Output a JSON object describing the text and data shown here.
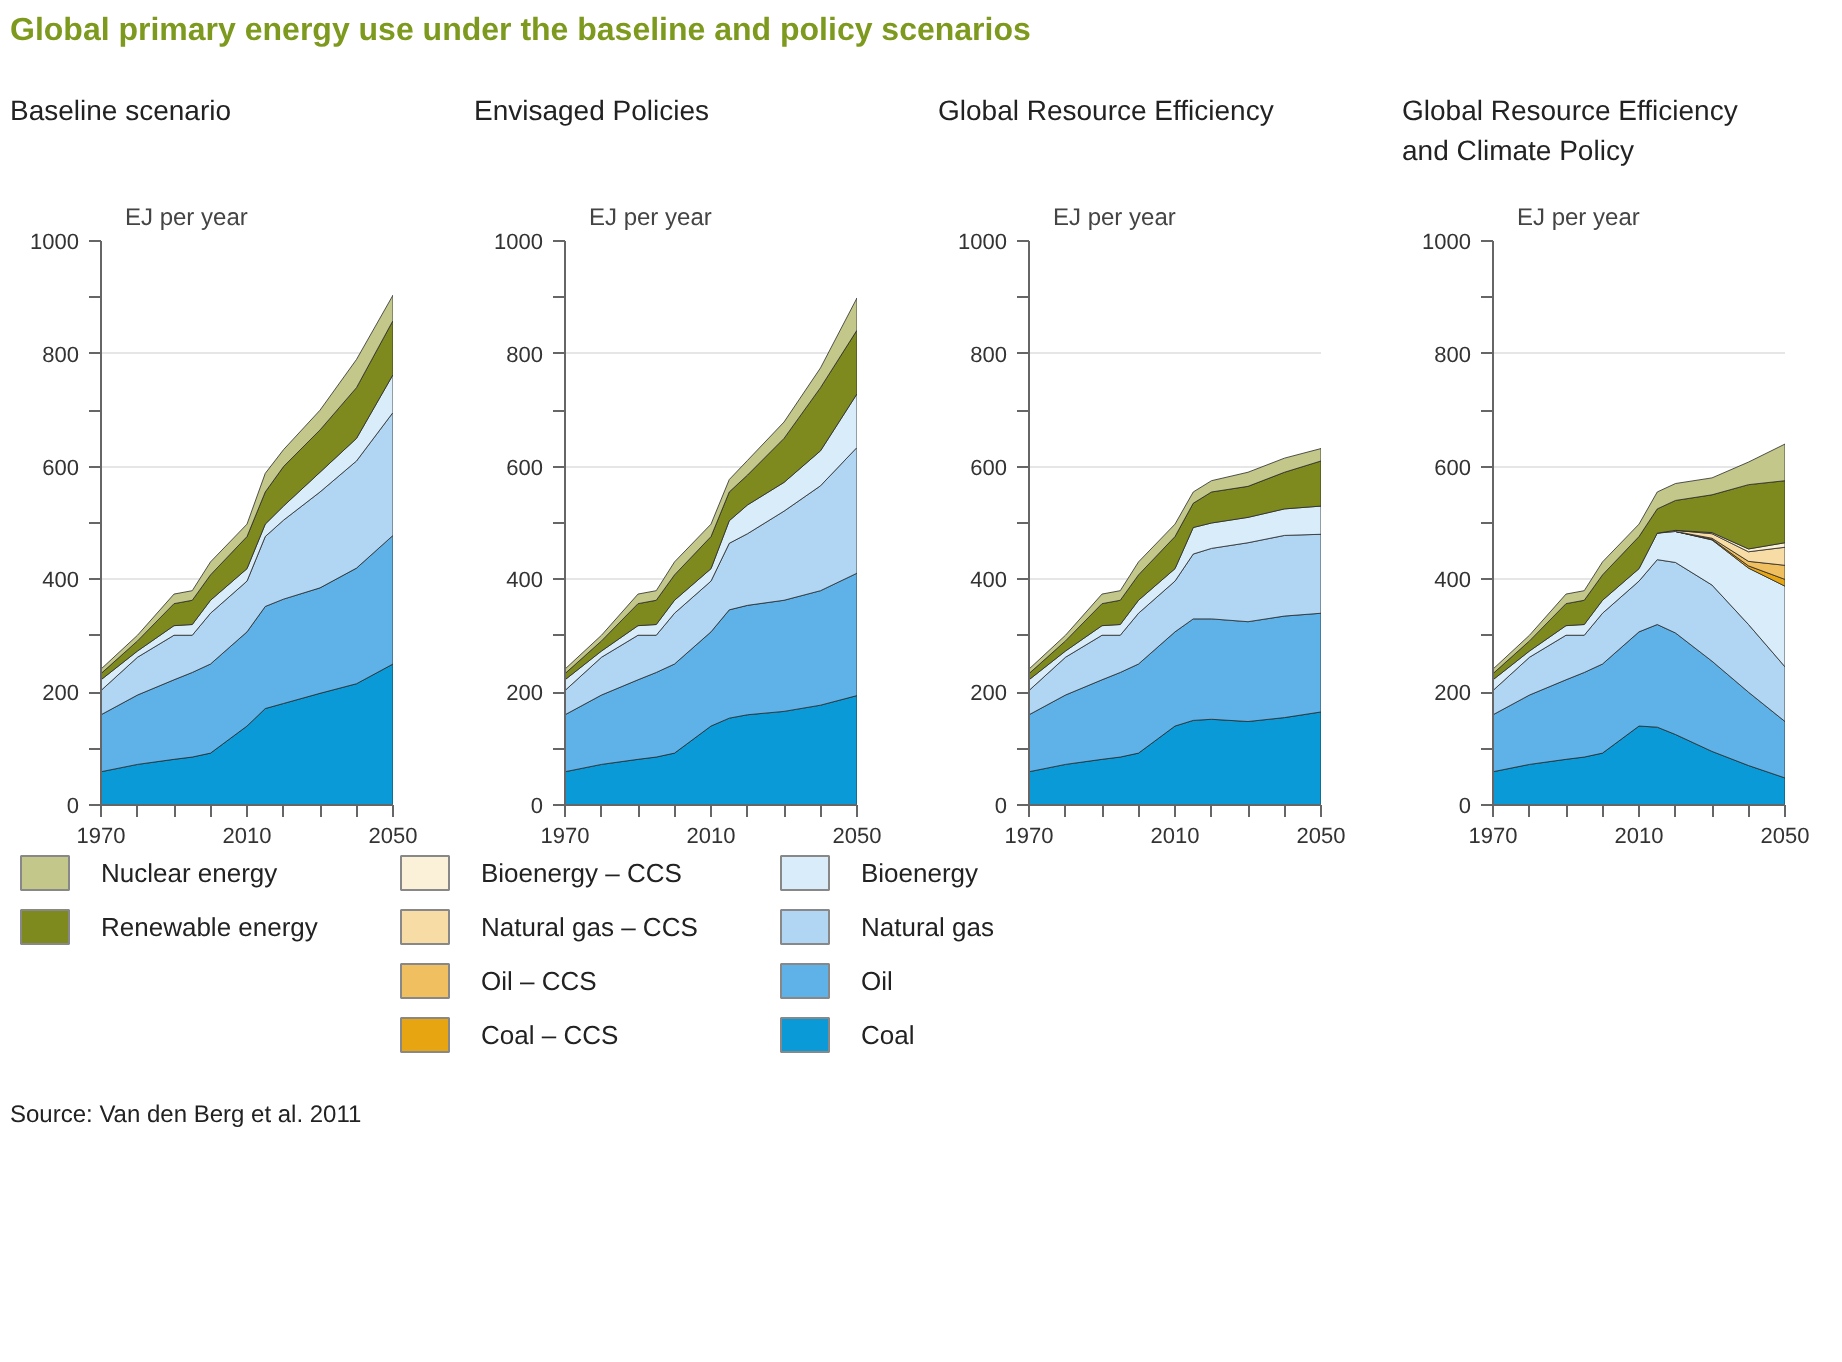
{
  "chart_data": [
    {
      "type": "area",
      "stacked": true,
      "title": "Global primary energy use under the baseline and policy scenarios",
      "subtitle": "Baseline scenario",
      "ylabel": "EJ per year",
      "annotations": [
        "Source: Van den Berg et al. 2011"
      ],
      "x": [
        1970,
        1980,
        1990,
        1995,
        2000,
        2010,
        2015,
        2020,
        2030,
        2040,
        2050
      ],
      "xlim": [
        1970,
        2050
      ],
      "xticks": [
        1970,
        {
          "value": 1980,
          "label": null
        },
        {
          "value": 1990,
          "label": null
        },
        {
          "value": 2000,
          "label": null
        },
        2010,
        {
          "value": 2020,
          "label": null
        },
        {
          "value": 2030,
          "label": null
        },
        {
          "value": 2040,
          "label": null
        },
        2050
      ],
      "ylim": [
        0,
        1000
      ],
      "yticks": [
        0,
        {
          "value": 100,
          "label": null
        },
        200,
        {
          "value": 300,
          "label": null
        },
        400,
        {
          "value": 500,
          "label": null
        },
        600,
        {
          "value": 700,
          "label": null
        },
        800,
        {
          "value": 900,
          "label": null
        },
        1000
      ],
      "grid": "y",
      "series": [
        {
          "color": "#0a9ad8",
          "values": [
            59,
            72,
            81,
            85,
            92,
            140,
            171,
            180,
            198,
            215,
            250
          ]
        },
        {
          "color": "#5fb2e8",
          "values": [
            101,
            123,
            141,
            150,
            158,
            167,
            181,
            185,
            187,
            205,
            228
          ]
        },
        {
          "color": "#b0d6f4",
          "values": [
            43,
            67,
            79,
            66,
            90,
            90,
            124,
            140,
            170,
            190,
            218
          ]
        },
        {
          "color": "#d8ecfa",
          "values": [
            19,
            11,
            17,
            19,
            23,
            22,
            22,
            25,
            35,
            40,
            67
          ]
        },
        {
          "color": "#7f8a1e",
          "values": [
            11,
            18,
            39,
            43,
            45,
            57,
            57,
            70,
            75,
            90,
            96
          ]
        },
        {
          "color": "#c3c88a",
          "values": [
            8,
            10,
            17,
            17,
            23,
            22,
            33,
            30,
            35,
            50,
            45
          ]
        }
      ]
    },
    {
      "type": "area",
      "stacked": true,
      "title": "Envisaged Policies",
      "ylabel": "EJ per year",
      "x": [
        1970,
        1980,
        1990,
        1995,
        2000,
        2010,
        2015,
        2020,
        2030,
        2040,
        2050
      ],
      "xlim": [
        1970,
        2050
      ],
      "xticks": [
        1970,
        {
          "value": 1980,
          "label": null
        },
        {
          "value": 1990,
          "label": null
        },
        {
          "value": 2000,
          "label": null
        },
        2010,
        {
          "value": 2020,
          "label": null
        },
        {
          "value": 2030,
          "label": null
        },
        {
          "value": 2040,
          "label": null
        },
        2050
      ],
      "ylim": [
        0,
        1000
      ],
      "yticks": [
        0,
        {
          "value": 100,
          "label": null
        },
        200,
        {
          "value": 300,
          "label": null
        },
        400,
        {
          "value": 500,
          "label": null
        },
        600,
        {
          "value": 700,
          "label": null
        },
        800,
        {
          "value": 900,
          "label": null
        },
        1000
      ],
      "grid": "y",
      "series": [
        {
          "color": "#0a9ad8",
          "values": [
            59,
            72,
            81,
            85,
            92,
            140,
            154,
            160,
            166,
            177,
            194
          ]
        },
        {
          "color": "#5fb2e8",
          "values": [
            101,
            123,
            141,
            150,
            158,
            167,
            192,
            194,
            197,
            203,
            217
          ]
        },
        {
          "color": "#b0d6f4",
          "values": [
            43,
            67,
            79,
            66,
            90,
            90,
            118,
            127,
            158,
            186,
            223
          ]
        },
        {
          "color": "#d8ecfa",
          "values": [
            19,
            11,
            17,
            19,
            23,
            22,
            40,
            51,
            51,
            62,
            95
          ]
        },
        {
          "color": "#7f8a1e",
          "values": [
            11,
            18,
            39,
            43,
            45,
            57,
            51,
            53,
            78,
            112,
            113
          ]
        },
        {
          "color": "#c3c88a",
          "values": [
            8,
            10,
            17,
            17,
            23,
            22,
            22,
            26,
            29,
            35,
            57
          ]
        }
      ]
    },
    {
      "type": "area",
      "stacked": true,
      "title": "Global Resource Efficiency",
      "ylabel": "EJ per year",
      "x": [
        1970,
        1980,
        1990,
        1995,
        2000,
        2010,
        2015,
        2020,
        2030,
        2040,
        2050
      ],
      "xlim": [
        1970,
        2050
      ],
      "xticks": [
        1970,
        {
          "value": 1980,
          "label": null
        },
        {
          "value": 1990,
          "label": null
        },
        {
          "value": 2000,
          "label": null
        },
        2010,
        {
          "value": 2020,
          "label": null
        },
        {
          "value": 2030,
          "label": null
        },
        {
          "value": 2040,
          "label": null
        },
        2050
      ],
      "ylim": [
        0,
        1000
      ],
      "yticks": [
        0,
        {
          "value": 100,
          "label": null
        },
        200,
        {
          "value": 300,
          "label": null
        },
        400,
        {
          "value": 500,
          "label": null
        },
        600,
        {
          "value": 700,
          "label": null
        },
        800,
        {
          "value": 900,
          "label": null
        },
        1000
      ],
      "grid": "y",
      "series": [
        {
          "color": "#0a9ad8",
          "values": [
            59,
            72,
            81,
            85,
            92,
            140,
            150,
            152,
            148,
            155,
            165
          ]
        },
        {
          "color": "#5fb2e8",
          "values": [
            101,
            123,
            141,
            150,
            158,
            167,
            180,
            178,
            177,
            180,
            175
          ]
        },
        {
          "color": "#b0d6f4",
          "values": [
            43,
            67,
            79,
            66,
            90,
            90,
            115,
            125,
            140,
            143,
            140
          ]
        },
        {
          "color": "#d8ecfa",
          "values": [
            19,
            11,
            17,
            19,
            23,
            22,
            47,
            45,
            45,
            47,
            50
          ]
        },
        {
          "color": "#7f8a1e",
          "values": [
            11,
            18,
            39,
            43,
            45,
            57,
            43,
            55,
            55,
            65,
            80
          ]
        },
        {
          "color": "#c3c88a",
          "values": [
            8,
            10,
            17,
            17,
            23,
            22,
            20,
            20,
            25,
            25,
            22
          ]
        }
      ]
    },
    {
      "type": "area",
      "stacked": true,
      "title": "Global Resource Efficiency and Climate Policy",
      "ylabel": "EJ per year",
      "legend": "bottom",
      "x": [
        1970,
        1980,
        1990,
        1995,
        2000,
        2010,
        2015,
        2020,
        2030,
        2040,
        2050
      ],
      "xlim": [
        1970,
        2050
      ],
      "xticks": [
        1970,
        {
          "value": 1980,
          "label": null
        },
        {
          "value": 1990,
          "label": null
        },
        {
          "value": 2000,
          "label": null
        },
        2010,
        {
          "value": 2020,
          "label": null
        },
        {
          "value": 2030,
          "label": null
        },
        {
          "value": 2040,
          "label": null
        },
        2050
      ],
      "ylim": [
        0,
        1000
      ],
      "yticks": [
        0,
        {
          "value": 100,
          "label": null
        },
        200,
        {
          "value": 300,
          "label": null
        },
        400,
        {
          "value": 500,
          "label": null
        },
        600,
        {
          "value": 700,
          "label": null
        },
        800,
        {
          "value": 900,
          "label": null
        },
        1000
      ],
      "grid": "y",
      "series": [
        {
          "name": "Coal",
          "color": "#0a9ad8",
          "values": [
            59,
            72,
            81,
            85,
            92,
            140,
            138,
            125,
            95,
            70,
            48
          ]
        },
        {
          "name": "Oil",
          "color": "#5fb2e8",
          "values": [
            101,
            123,
            141,
            150,
            158,
            167,
            182,
            180,
            160,
            130,
            100
          ]
        },
        {
          "name": "Natural gas",
          "color": "#b0d6f4",
          "values": [
            43,
            67,
            79,
            66,
            90,
            90,
            115,
            125,
            135,
            120,
            97
          ]
        },
        {
          "name": "Bioenergy",
          "color": "#d8ecfa",
          "values": [
            19,
            11,
            17,
            19,
            23,
            22,
            47,
            55,
            80,
            100,
            143
          ]
        },
        {
          "name": "Coal – CCS",
          "color": "#e8a512",
          "values": [
            null,
            null,
            null,
            null,
            null,
            null,
            null,
            0,
            1,
            4,
            12
          ]
        },
        {
          "name": "Oil – CCS",
          "color": "#f0c060",
          "values": [
            null,
            null,
            null,
            null,
            null,
            null,
            null,
            0,
            2,
            8,
            25
          ]
        },
        {
          "name": "Natural gas – CCS",
          "color": "#f8dca6",
          "values": [
            null,
            null,
            null,
            null,
            null,
            null,
            0,
            2,
            8,
            17,
            32
          ]
        },
        {
          "name": "Bioenergy – CCS",
          "color": "#fbf1d8",
          "values": [
            null,
            null,
            null,
            null,
            null,
            null,
            null,
            0,
            2,
            5,
            8
          ]
        },
        {
          "name": "Renewable energy",
          "color": "#7f8a1e",
          "values": [
            11,
            18,
            39,
            43,
            45,
            57,
            43,
            53,
            67,
            114,
            110
          ]
        },
        {
          "name": "Nuclear energy",
          "color": "#c3c88a",
          "values": [
            8,
            10,
            17,
            17,
            23,
            22,
            30,
            30,
            30,
            40,
            65
          ]
        }
      ]
    }
  ]
}
